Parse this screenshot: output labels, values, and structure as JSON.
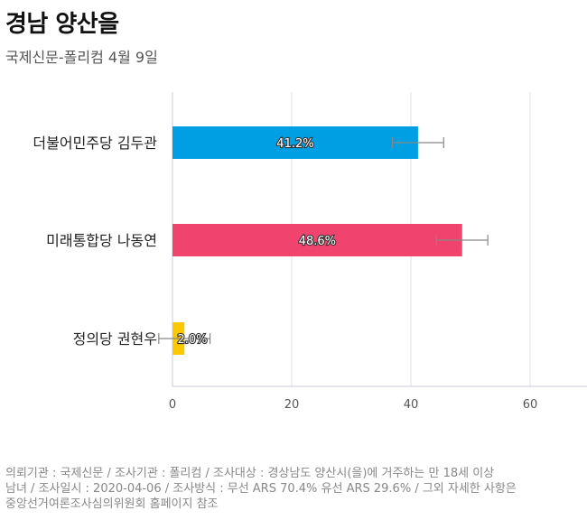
{
  "header": {
    "title": "경남 양산을",
    "subtitle": "국제신문-폴리컴 4월 9일"
  },
  "colors": {
    "grid": "#e2e2e2",
    "axis": "#c8c8d8",
    "error_bar": "#888888",
    "label_text": "#ffffff"
  },
  "chart_data": {
    "type": "bar",
    "orientation": "horizontal",
    "categories": [
      "더불어민주당 김두관",
      "미래통합당 나동연",
      "정의당 권현우"
    ],
    "series": [
      {
        "values": [
          41.2,
          48.6,
          2.0
        ],
        "value_labels": [
          "41.2%",
          "48.6%",
          "2.0%"
        ],
        "colors": [
          "#009fe3",
          "#f0436e",
          "#fcc800"
        ],
        "error": [
          4.3,
          4.3,
          4.3
        ]
      }
    ],
    "xlim": [
      0,
      70
    ],
    "xticks": [
      0,
      20,
      40,
      60
    ],
    "xtick_labels": [
      "0",
      "20",
      "40",
      "60"
    ],
    "grid": true
  },
  "footer": {
    "lines": [
      "의뢰기관 : 국제신문 / 조사기관 : 폴리컴 / 조사대상 : 경상남도 양산시(을)에 거주하는 만 18세 이상",
      "남녀 / 조사일시 : 2020-04-06 / 조사방식 : 무선 ARS 70.4% 유선 ARS 29.6% / 그외 자세한 사항은",
      "중앙선거여론조사심의위원회 홈페이지 참조"
    ]
  }
}
